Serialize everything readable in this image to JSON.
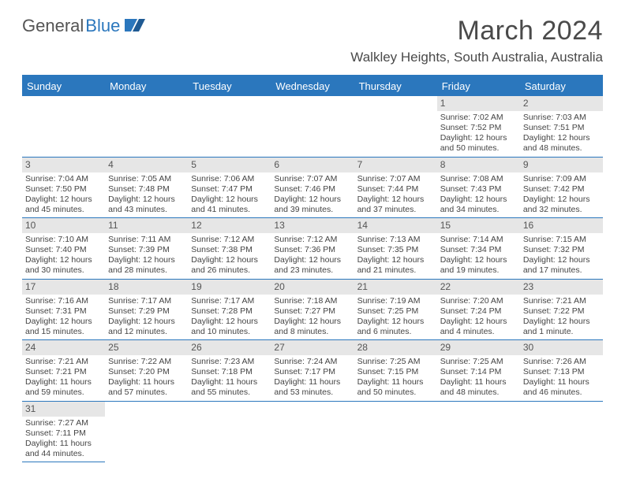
{
  "logo": {
    "text1": "General",
    "text2": "Blue"
  },
  "title": "March 2024",
  "location": "Walkley Heights, South Australia, Australia",
  "colors": {
    "header_bg": "#2b77bd",
    "daynum_bg": "#e6e6e6",
    "text": "#444444",
    "title_text": "#4a4a4a"
  },
  "weekdays": [
    "Sunday",
    "Monday",
    "Tuesday",
    "Wednesday",
    "Thursday",
    "Friday",
    "Saturday"
  ],
  "leading_blanks": 5,
  "days": [
    {
      "n": "1",
      "sunrise": "Sunrise: 7:02 AM",
      "sunset": "Sunset: 7:52 PM",
      "daylight": "Daylight: 12 hours and 50 minutes."
    },
    {
      "n": "2",
      "sunrise": "Sunrise: 7:03 AM",
      "sunset": "Sunset: 7:51 PM",
      "daylight": "Daylight: 12 hours and 48 minutes."
    },
    {
      "n": "3",
      "sunrise": "Sunrise: 7:04 AM",
      "sunset": "Sunset: 7:50 PM",
      "daylight": "Daylight: 12 hours and 45 minutes."
    },
    {
      "n": "4",
      "sunrise": "Sunrise: 7:05 AM",
      "sunset": "Sunset: 7:48 PM",
      "daylight": "Daylight: 12 hours and 43 minutes."
    },
    {
      "n": "5",
      "sunrise": "Sunrise: 7:06 AM",
      "sunset": "Sunset: 7:47 PM",
      "daylight": "Daylight: 12 hours and 41 minutes."
    },
    {
      "n": "6",
      "sunrise": "Sunrise: 7:07 AM",
      "sunset": "Sunset: 7:46 PM",
      "daylight": "Daylight: 12 hours and 39 minutes."
    },
    {
      "n": "7",
      "sunrise": "Sunrise: 7:07 AM",
      "sunset": "Sunset: 7:44 PM",
      "daylight": "Daylight: 12 hours and 37 minutes."
    },
    {
      "n": "8",
      "sunrise": "Sunrise: 7:08 AM",
      "sunset": "Sunset: 7:43 PM",
      "daylight": "Daylight: 12 hours and 34 minutes."
    },
    {
      "n": "9",
      "sunrise": "Sunrise: 7:09 AM",
      "sunset": "Sunset: 7:42 PM",
      "daylight": "Daylight: 12 hours and 32 minutes."
    },
    {
      "n": "10",
      "sunrise": "Sunrise: 7:10 AM",
      "sunset": "Sunset: 7:40 PM",
      "daylight": "Daylight: 12 hours and 30 minutes."
    },
    {
      "n": "11",
      "sunrise": "Sunrise: 7:11 AM",
      "sunset": "Sunset: 7:39 PM",
      "daylight": "Daylight: 12 hours and 28 minutes."
    },
    {
      "n": "12",
      "sunrise": "Sunrise: 7:12 AM",
      "sunset": "Sunset: 7:38 PM",
      "daylight": "Daylight: 12 hours and 26 minutes."
    },
    {
      "n": "13",
      "sunrise": "Sunrise: 7:12 AM",
      "sunset": "Sunset: 7:36 PM",
      "daylight": "Daylight: 12 hours and 23 minutes."
    },
    {
      "n": "14",
      "sunrise": "Sunrise: 7:13 AM",
      "sunset": "Sunset: 7:35 PM",
      "daylight": "Daylight: 12 hours and 21 minutes."
    },
    {
      "n": "15",
      "sunrise": "Sunrise: 7:14 AM",
      "sunset": "Sunset: 7:34 PM",
      "daylight": "Daylight: 12 hours and 19 minutes."
    },
    {
      "n": "16",
      "sunrise": "Sunrise: 7:15 AM",
      "sunset": "Sunset: 7:32 PM",
      "daylight": "Daylight: 12 hours and 17 minutes."
    },
    {
      "n": "17",
      "sunrise": "Sunrise: 7:16 AM",
      "sunset": "Sunset: 7:31 PM",
      "daylight": "Daylight: 12 hours and 15 minutes."
    },
    {
      "n": "18",
      "sunrise": "Sunrise: 7:17 AM",
      "sunset": "Sunset: 7:29 PM",
      "daylight": "Daylight: 12 hours and 12 minutes."
    },
    {
      "n": "19",
      "sunrise": "Sunrise: 7:17 AM",
      "sunset": "Sunset: 7:28 PM",
      "daylight": "Daylight: 12 hours and 10 minutes."
    },
    {
      "n": "20",
      "sunrise": "Sunrise: 7:18 AM",
      "sunset": "Sunset: 7:27 PM",
      "daylight": "Daylight: 12 hours and 8 minutes."
    },
    {
      "n": "21",
      "sunrise": "Sunrise: 7:19 AM",
      "sunset": "Sunset: 7:25 PM",
      "daylight": "Daylight: 12 hours and 6 minutes."
    },
    {
      "n": "22",
      "sunrise": "Sunrise: 7:20 AM",
      "sunset": "Sunset: 7:24 PM",
      "daylight": "Daylight: 12 hours and 4 minutes."
    },
    {
      "n": "23",
      "sunrise": "Sunrise: 7:21 AM",
      "sunset": "Sunset: 7:22 PM",
      "daylight": "Daylight: 12 hours and 1 minute."
    },
    {
      "n": "24",
      "sunrise": "Sunrise: 7:21 AM",
      "sunset": "Sunset: 7:21 PM",
      "daylight": "Daylight: 11 hours and 59 minutes."
    },
    {
      "n": "25",
      "sunrise": "Sunrise: 7:22 AM",
      "sunset": "Sunset: 7:20 PM",
      "daylight": "Daylight: 11 hours and 57 minutes."
    },
    {
      "n": "26",
      "sunrise": "Sunrise: 7:23 AM",
      "sunset": "Sunset: 7:18 PM",
      "daylight": "Daylight: 11 hours and 55 minutes."
    },
    {
      "n": "27",
      "sunrise": "Sunrise: 7:24 AM",
      "sunset": "Sunset: 7:17 PM",
      "daylight": "Daylight: 11 hours and 53 minutes."
    },
    {
      "n": "28",
      "sunrise": "Sunrise: 7:25 AM",
      "sunset": "Sunset: 7:15 PM",
      "daylight": "Daylight: 11 hours and 50 minutes."
    },
    {
      "n": "29",
      "sunrise": "Sunrise: 7:25 AM",
      "sunset": "Sunset: 7:14 PM",
      "daylight": "Daylight: 11 hours and 48 minutes."
    },
    {
      "n": "30",
      "sunrise": "Sunrise: 7:26 AM",
      "sunset": "Sunset: 7:13 PM",
      "daylight": "Daylight: 11 hours and 46 minutes."
    },
    {
      "n": "31",
      "sunrise": "Sunrise: 7:27 AM",
      "sunset": "Sunset: 7:11 PM",
      "daylight": "Daylight: 11 hours and 44 minutes."
    }
  ]
}
